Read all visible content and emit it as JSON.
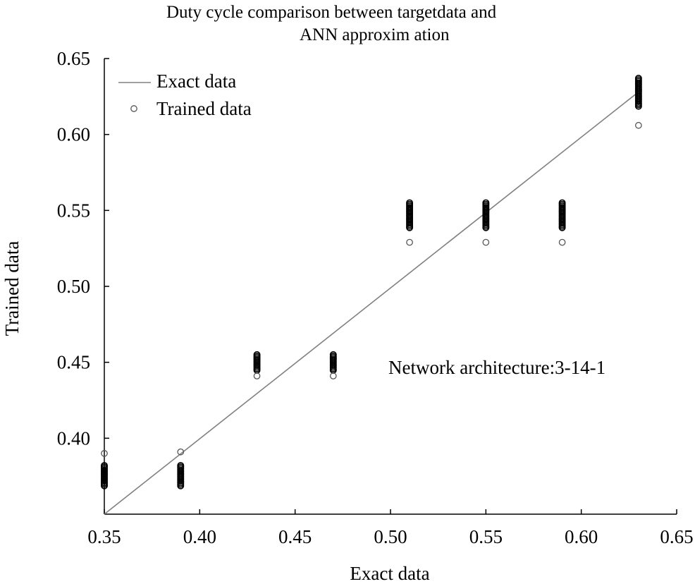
{
  "chart_data": {
    "type": "scatter",
    "title_line1": "Duty cycle comparison between targetdata and",
    "title_line2": "ANN approxim ation",
    "xlabel": "Exact data",
    "ylabel": "Trained data",
    "xlim": [
      0.35,
      0.65
    ],
    "ylim": [
      0.35,
      0.65
    ],
    "x_ticks": [
      "0.35",
      "0.40",
      "0.45",
      "0.50",
      "0.55",
      "0.60",
      "0.65"
    ],
    "y_ticks": [
      "0.40",
      "0.45",
      "0.50",
      "0.55",
      "0.60",
      "0.65"
    ],
    "y_tick_values": [
      0.4,
      0.45,
      0.5,
      0.55,
      0.6,
      0.65
    ],
    "x_tick_values": [
      0.35,
      0.4,
      0.45,
      0.5,
      0.55,
      0.6,
      0.65
    ],
    "annotation": "Network architecture:3-14-1",
    "legend": {
      "position": "top-left",
      "entries": [
        "Exact data",
        "Trained data"
      ]
    },
    "series": [
      {
        "name": "Exact data",
        "kind": "line",
        "x": [
          0.35,
          0.63
        ],
        "y": [
          0.35,
          0.628
        ]
      },
      {
        "name": "Trained data",
        "kind": "scatter-clusters",
        "clusters": [
          {
            "x": 0.35,
            "outlier": 0.39,
            "band": [
              0.368,
              0.382
            ]
          },
          {
            "x": 0.39,
            "outlier": 0.391,
            "band": [
              0.368,
              0.382
            ]
          },
          {
            "x": 0.43,
            "outlier": 0.441,
            "band": [
              0.444,
              0.455
            ]
          },
          {
            "x": 0.47,
            "outlier": 0.441,
            "band": [
              0.444,
              0.455
            ]
          },
          {
            "x": 0.51,
            "outlier": 0.529,
            "band": [
              0.538,
              0.555
            ]
          },
          {
            "x": 0.55,
            "outlier": 0.529,
            "band": [
              0.538,
              0.555
            ]
          },
          {
            "x": 0.59,
            "outlier": 0.529,
            "band": [
              0.538,
              0.555
            ]
          },
          {
            "x": 0.63,
            "outlier": 0.606,
            "band": [
              0.618,
              0.637
            ]
          }
        ]
      }
    ]
  }
}
